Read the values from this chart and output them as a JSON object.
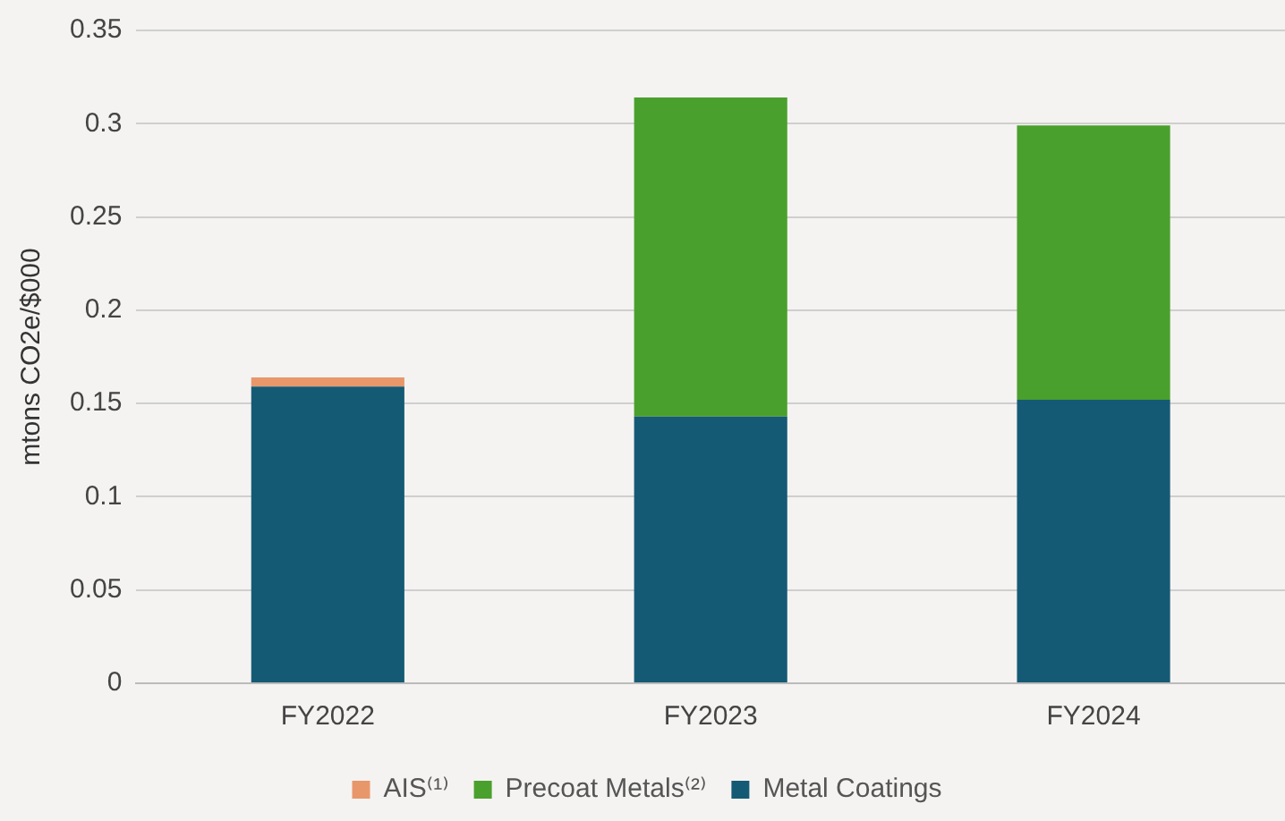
{
  "chart_data": {
    "type": "bar",
    "stacked": true,
    "ylabel": "mtons CO2e/$000",
    "categories": [
      "FY2022",
      "FY2023",
      "FY2024"
    ],
    "series": [
      {
        "name": "Metal Coatings",
        "color": "#155a75",
        "values": [
          0.159,
          0.143,
          0.152
        ]
      },
      {
        "name": "Precoat Metals⁽²⁾",
        "color": "#4aa02c",
        "values": [
          null,
          0.171,
          0.147
        ]
      },
      {
        "name": "AIS⁽¹⁾",
        "color": "#e8976b",
        "values": [
          0.005,
          null,
          null
        ]
      }
    ],
    "ylim": [
      0,
      0.35
    ],
    "yticks": [
      0,
      0.05,
      0.1,
      0.15,
      0.2,
      0.25,
      0.3,
      0.35
    ],
    "grid": "y",
    "legend": "bottom"
  }
}
